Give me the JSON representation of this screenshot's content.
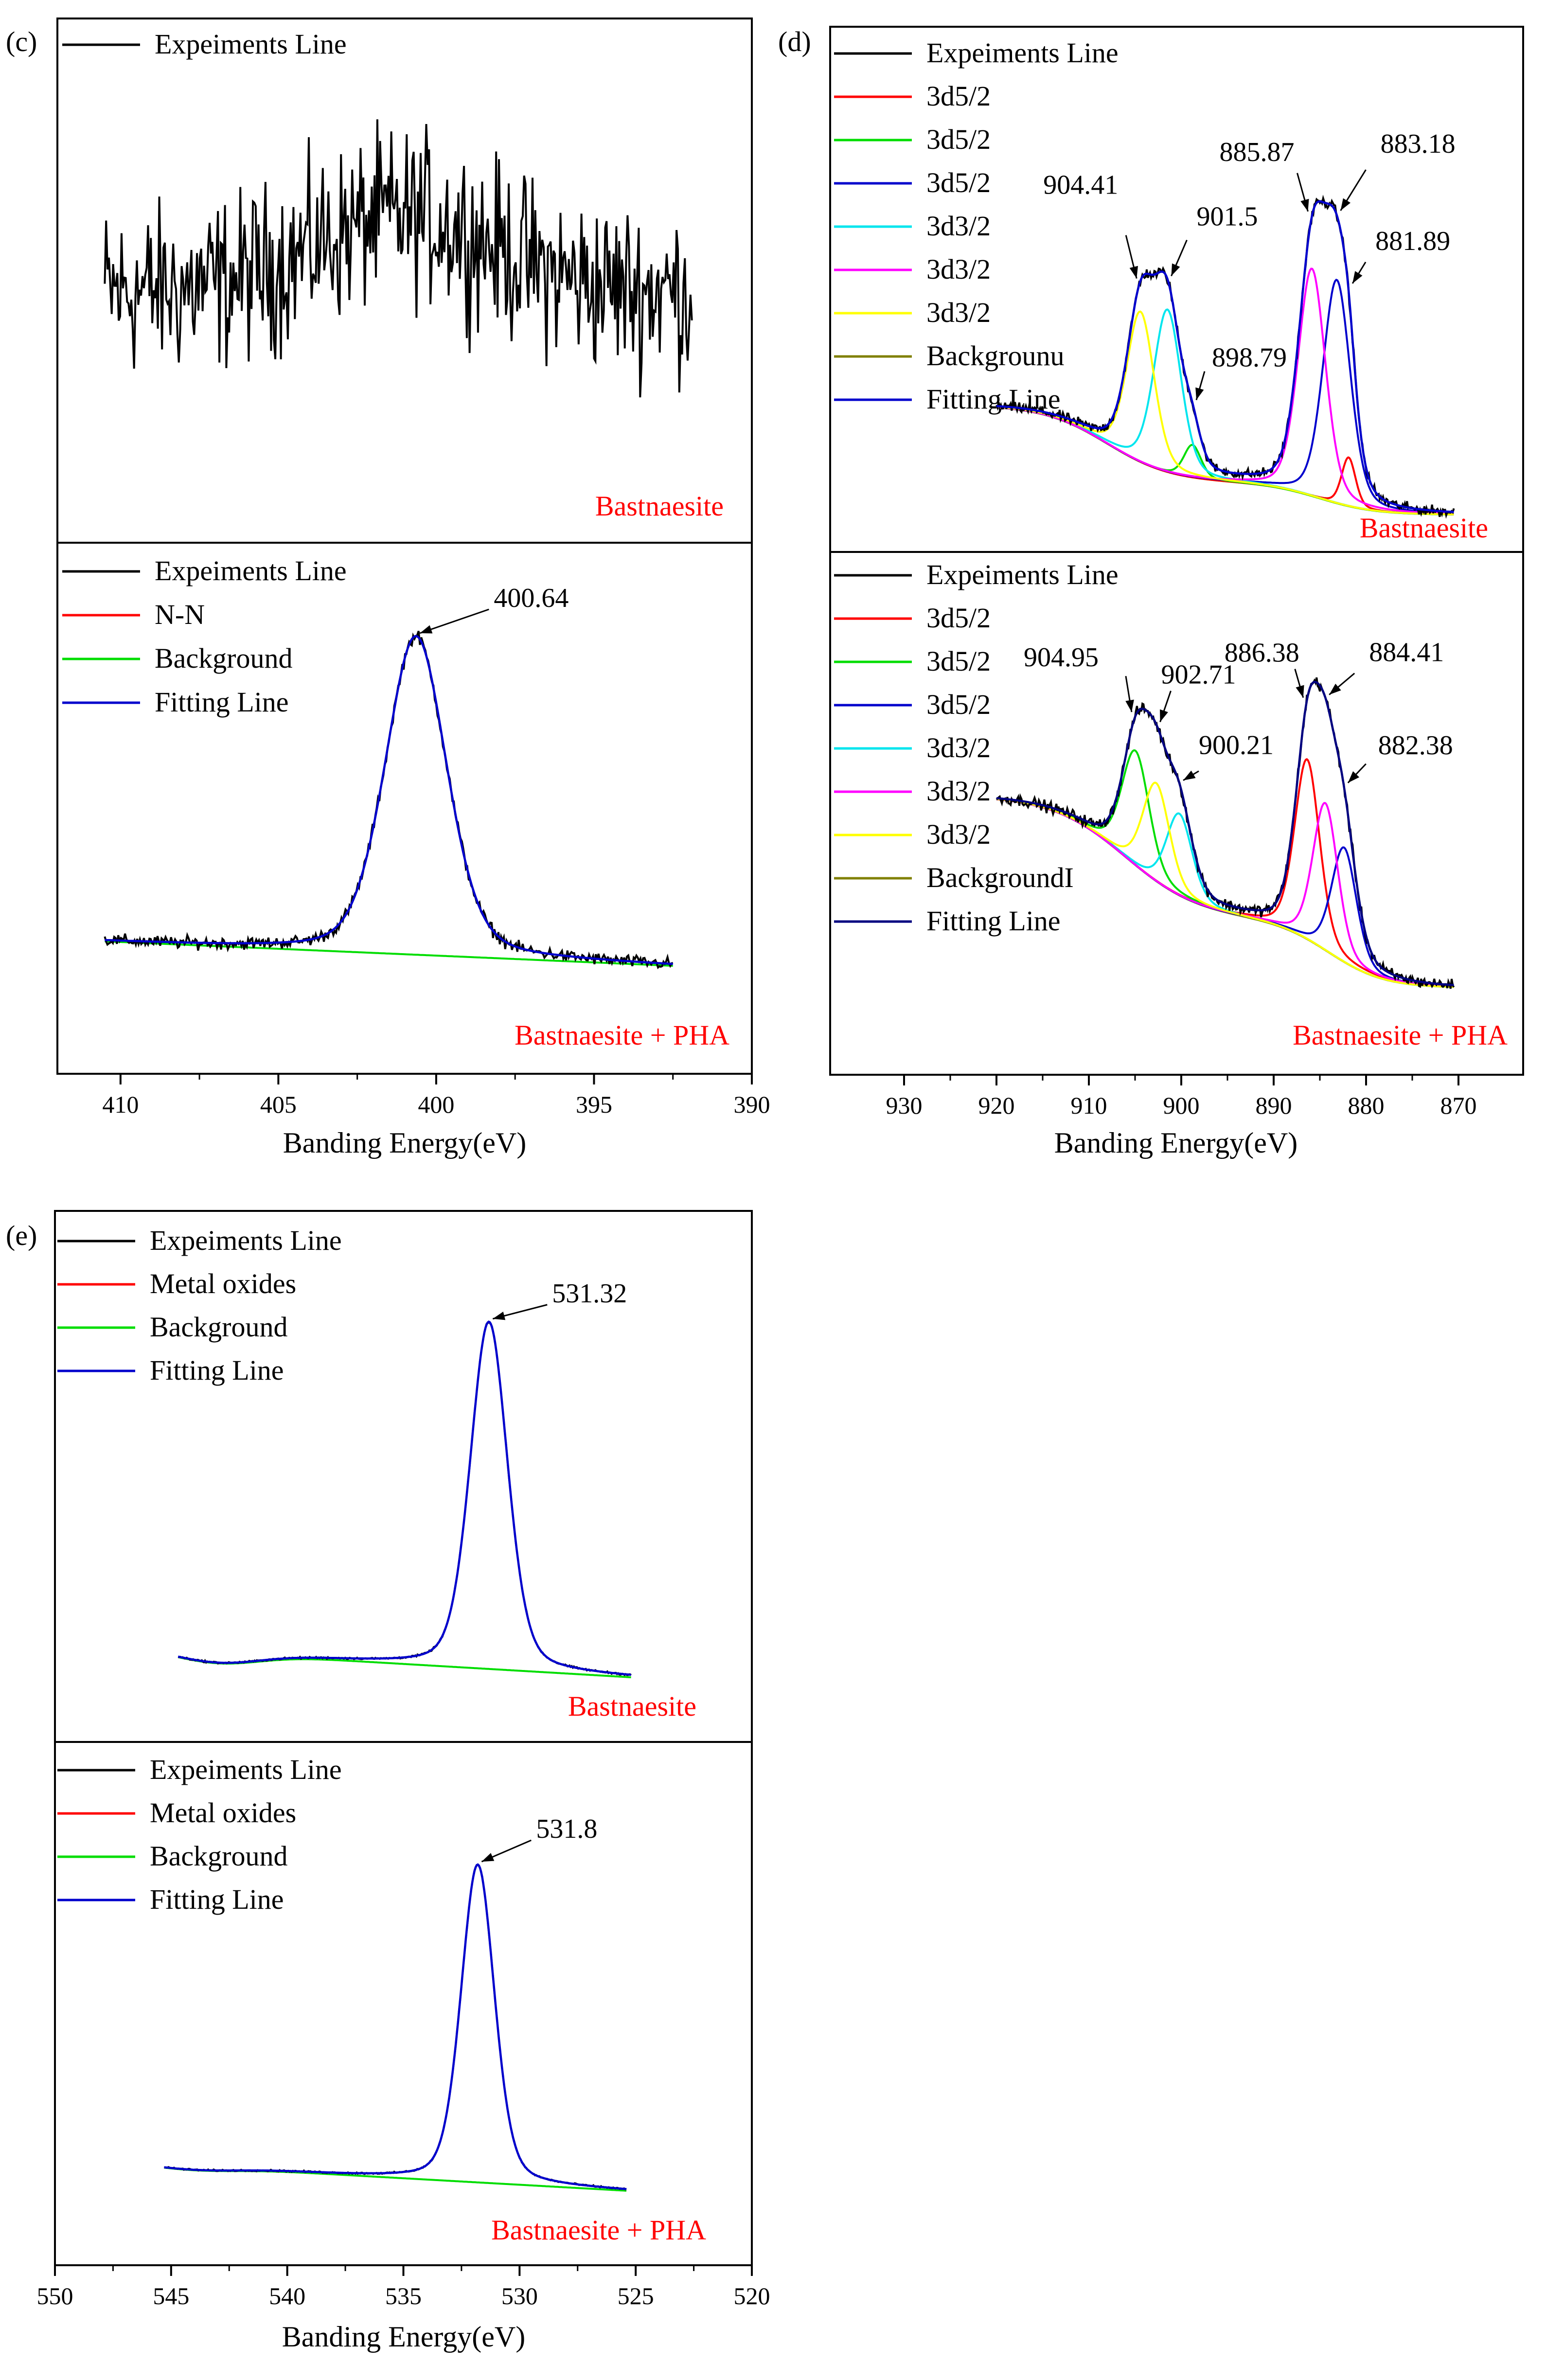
{
  "figure": {
    "background": "#ffffff",
    "frame_color": "#000000",
    "colors": {
      "experiment": "#000000",
      "red": "#ff0000",
      "green": "#00dd00",
      "blue": "#0000cc",
      "navy": "#000080",
      "cyan": "#00e5ee",
      "magenta": "#ff00ff",
      "yellow": "#ffff00",
      "olive": "#808000",
      "sample_label": "#ff0000"
    }
  },
  "chart_data": [
    {
      "panel": "(c)",
      "type": "line",
      "xlabel": "Banding Energy(eV)",
      "xlim": [
        412,
        390
      ],
      "xticks": [
        410,
        405,
        400,
        395,
        390
      ],
      "ylabel": "",
      "yticks_shown": false,
      "subplots": [
        {
          "sample": "Bastnaesite",
          "legend_placement": "top-left",
          "legend": [
            {
              "label": "Expeiments Line",
              "color": "#000000"
            }
          ],
          "experiment": {
            "x_range": [
              410.5,
              391.9
            ],
            "noise_level": 0.5,
            "baseline": 0.5
          },
          "series": [],
          "peak_labels": []
        },
        {
          "sample": "Bastnaesite + PHA",
          "legend_placement": "top-left",
          "legend": [
            {
              "label": "Expeiments Line",
              "color": "#000000"
            },
            {
              "label": "N-N",
              "color": "#ff0000"
            },
            {
              "label": "Background",
              "color": "#00dd00"
            },
            {
              "label": "Fitting Line",
              "color": "#0000cc"
            }
          ],
          "background": {
            "start": 0.16,
            "end": 0.1
          },
          "experiment": {
            "x_range": [
              410.5,
              392.5
            ],
            "noise_level": 0.022
          },
          "series": [
            {
              "name": "N-N",
              "center": 400.64,
              "amp": 0.78,
              "fwhm": 2.3,
              "color": "#ff0000",
              "visible": false
            }
          ],
          "fit_color": "#0000cc",
          "peak_labels": [
            {
              "text": "400.64",
              "x": 400.64
            }
          ]
        }
      ]
    },
    {
      "panel": "(d)",
      "type": "line",
      "xlabel": "Banding Energy(eV)",
      "xlim": [
        938,
        863
      ],
      "xticks": [
        930,
        920,
        910,
        900,
        890,
        880,
        870
      ],
      "ylabel": "",
      "yticks_shown": false,
      "subplots": [
        {
          "sample": "Bastnaesite",
          "legend_placement": "top-left",
          "legend": [
            {
              "label": "Expeiments Line",
              "color": "#000000"
            },
            {
              "label": "3d5/2",
              "color": "#ff0000"
            },
            {
              "label": "3d5/2",
              "color": "#00dd00"
            },
            {
              "label": "3d5/2",
              "color": "#0000cc"
            },
            {
              "label": "3d3/2",
              "color": "#00e5ee"
            },
            {
              "label": "3d3/2",
              "color": "#ff00ff"
            },
            {
              "label": "3d3/2",
              "color": "#ffff00"
            },
            {
              "label": "Backgrounu",
              "color": "#808000"
            },
            {
              "label": "Fitting Line",
              "color": "#0000cc"
            }
          ],
          "background_color": "#808000",
          "background": {
            "start": 0.26,
            "step_center": 908,
            "step_width": 3.5,
            "step_height": 0.19,
            "step2_center": 885,
            "step2_width": 3,
            "step2_height": 0.08
          },
          "experiment": {
            "x_range": [
              920,
              870.5
            ],
            "noise_level": 0.018
          },
          "series": [
            {
              "name": "3d5/2",
              "center": 881.89,
              "amp": 0.12,
              "fwhm": 1.8,
              "color": "#ff0000"
            },
            {
              "name": "3d5/2",
              "center": 898.79,
              "amp": 0.08,
              "fwhm": 2.2,
              "color": "#00dd00"
            },
            {
              "name": "3d5/2",
              "center": 883.18,
              "amp": 0.55,
              "fwhm": 3.5,
              "color": "#0000cc"
            },
            {
              "name": "3d3/2",
              "center": 901.5,
              "amp": 0.4,
              "fwhm": 3.5,
              "color": "#00e5ee"
            },
            {
              "name": "3d3/2",
              "center": 885.87,
              "amp": 0.56,
              "fwhm": 3.5,
              "color": "#ff00ff"
            },
            {
              "name": "3d3/2",
              "center": 904.41,
              "amp": 0.37,
              "fwhm": 3.5,
              "color": "#ffff00"
            }
          ],
          "fit_color": "#0000cc",
          "peak_labels": [
            {
              "text": "904.41",
              "x": 904.41
            },
            {
              "text": "901.5",
              "x": 901.5
            },
            {
              "text": "898.79",
              "x": 898.79
            },
            {
              "text": "885.87",
              "x": 885.87
            },
            {
              "text": "883.18",
              "x": 883.18
            },
            {
              "text": "881.89",
              "x": 881.89
            }
          ]
        },
        {
          "sample": "Bastnaesite + PHA",
          "legend_placement": "top-left",
          "legend": [
            {
              "label": "Expeiments Line",
              "color": "#000000"
            },
            {
              "label": "3d5/2",
              "color": "#ff0000"
            },
            {
              "label": "3d5/2",
              "color": "#00dd00"
            },
            {
              "label": "3d5/2",
              "color": "#0000cc"
            },
            {
              "label": "3d3/2",
              "color": "#00e5ee"
            },
            {
              "label": "3d3/2",
              "color": "#ff00ff"
            },
            {
              "label": "3d3/2",
              "color": "#ffff00"
            },
            {
              "label": "BackgroundI",
              "color": "#808000"
            },
            {
              "label": "Fitting Line",
              "color": "#000080"
            }
          ],
          "background_color": "#808000",
          "background": {
            "start": 0.54,
            "step_center": 906,
            "step_width": 4,
            "step_height": 0.3,
            "step2_center": 884,
            "step2_width": 3,
            "step2_height": 0.17
          },
          "experiment": {
            "x_range": [
              920,
              870.5
            ],
            "noise_level": 0.02
          },
          "series": [
            {
              "name": "3d5/2",
              "center": 886.38,
              "amp": 0.44,
              "fwhm": 3.2,
              "color": "#ff0000"
            },
            {
              "name": "3d5/2",
              "center": 904.95,
              "amp": 0.28,
              "fwhm": 3.5,
              "color": "#00dd00"
            },
            {
              "name": "3d5/2",
              "center": 882.38,
              "amp": 0.28,
              "fwhm": 3.2,
              "color": "#0000cc"
            },
            {
              "name": "3d3/2",
              "center": 900.21,
              "amp": 0.2,
              "fwhm": 3.3,
              "color": "#00e5ee"
            },
            {
              "name": "3d3/2",
              "center": 884.41,
              "amp": 0.36,
              "fwhm": 3.2,
              "color": "#ff00ff"
            },
            {
              "name": "3d3/2",
              "center": 902.71,
              "amp": 0.24,
              "fwhm": 3.4,
              "color": "#ffff00"
            }
          ],
          "fit_color": "#000080",
          "peak_labels": [
            {
              "text": "904.95",
              "x": 904.95
            },
            {
              "text": "902.71",
              "x": 902.71
            },
            {
              "text": "900.21",
              "x": 900.21
            },
            {
              "text": "886.38",
              "x": 886.38
            },
            {
              "text": "884.41",
              "x": 884.41
            },
            {
              "text": "882.38",
              "x": 882.38
            }
          ]
        }
      ]
    },
    {
      "panel": "(e)",
      "type": "line",
      "xlabel": "Banding Energy(eV)",
      "xlim": [
        550,
        520
      ],
      "xticks": [
        550,
        545,
        540,
        535,
        530,
        525,
        520
      ],
      "ylabel": "",
      "yticks_shown": false,
      "subplots": [
        {
          "sample": "Bastnaesite",
          "legend_placement": "top-left",
          "legend": [
            {
              "label": "Expeiments Line",
              "color": "#000000"
            },
            {
              "label": "Metal oxides",
              "color": "#ff0000"
            },
            {
              "label": "Background",
              "color": "#00dd00"
            },
            {
              "label": "Fitting Line",
              "color": "#0000cc"
            }
          ],
          "background": {
            "start": 0.09,
            "end": 0.025,
            "bump_center": 543,
            "bump_height": 0.025
          },
          "experiment": {
            "x_range": [
              544.7,
              525.2
            ],
            "noise_level": 0.003
          },
          "series": [
            {
              "name": "Metal oxides",
              "center": 531.32,
              "amp": 0.85,
              "fwhm": 1.9,
              "color": "#ff0000",
              "visible": false
            }
          ],
          "fit_color": "#0000cc",
          "peak_labels": [
            {
              "text": "531.32",
              "x": 531.32
            }
          ]
        },
        {
          "sample": "Bastnaesite + PHA",
          "legend_placement": "top-left",
          "legend": [
            {
              "label": "Expeiments Line",
              "color": "#000000"
            },
            {
              "label": "Metal oxides",
              "color": "#ff0000"
            },
            {
              "label": "Background",
              "color": "#00dd00"
            },
            {
              "label": "Fitting Line",
              "color": "#0000cc"
            }
          ],
          "background": {
            "start": 0.09,
            "end": 0.02,
            "bump_center": 544,
            "bump_height": 0.01
          },
          "experiment": {
            "x_range": [
              545.3,
              525.4
            ],
            "noise_level": 0.003
          },
          "series": [
            {
              "name": "Metal oxides",
              "center": 531.8,
              "amp": 0.86,
              "fwhm": 1.7,
              "color": "#ff0000",
              "visible": false
            }
          ],
          "fit_color": "#0000cc",
          "peak_labels": [
            {
              "text": "531.8",
              "x": 531.8
            }
          ]
        }
      ]
    }
  ]
}
